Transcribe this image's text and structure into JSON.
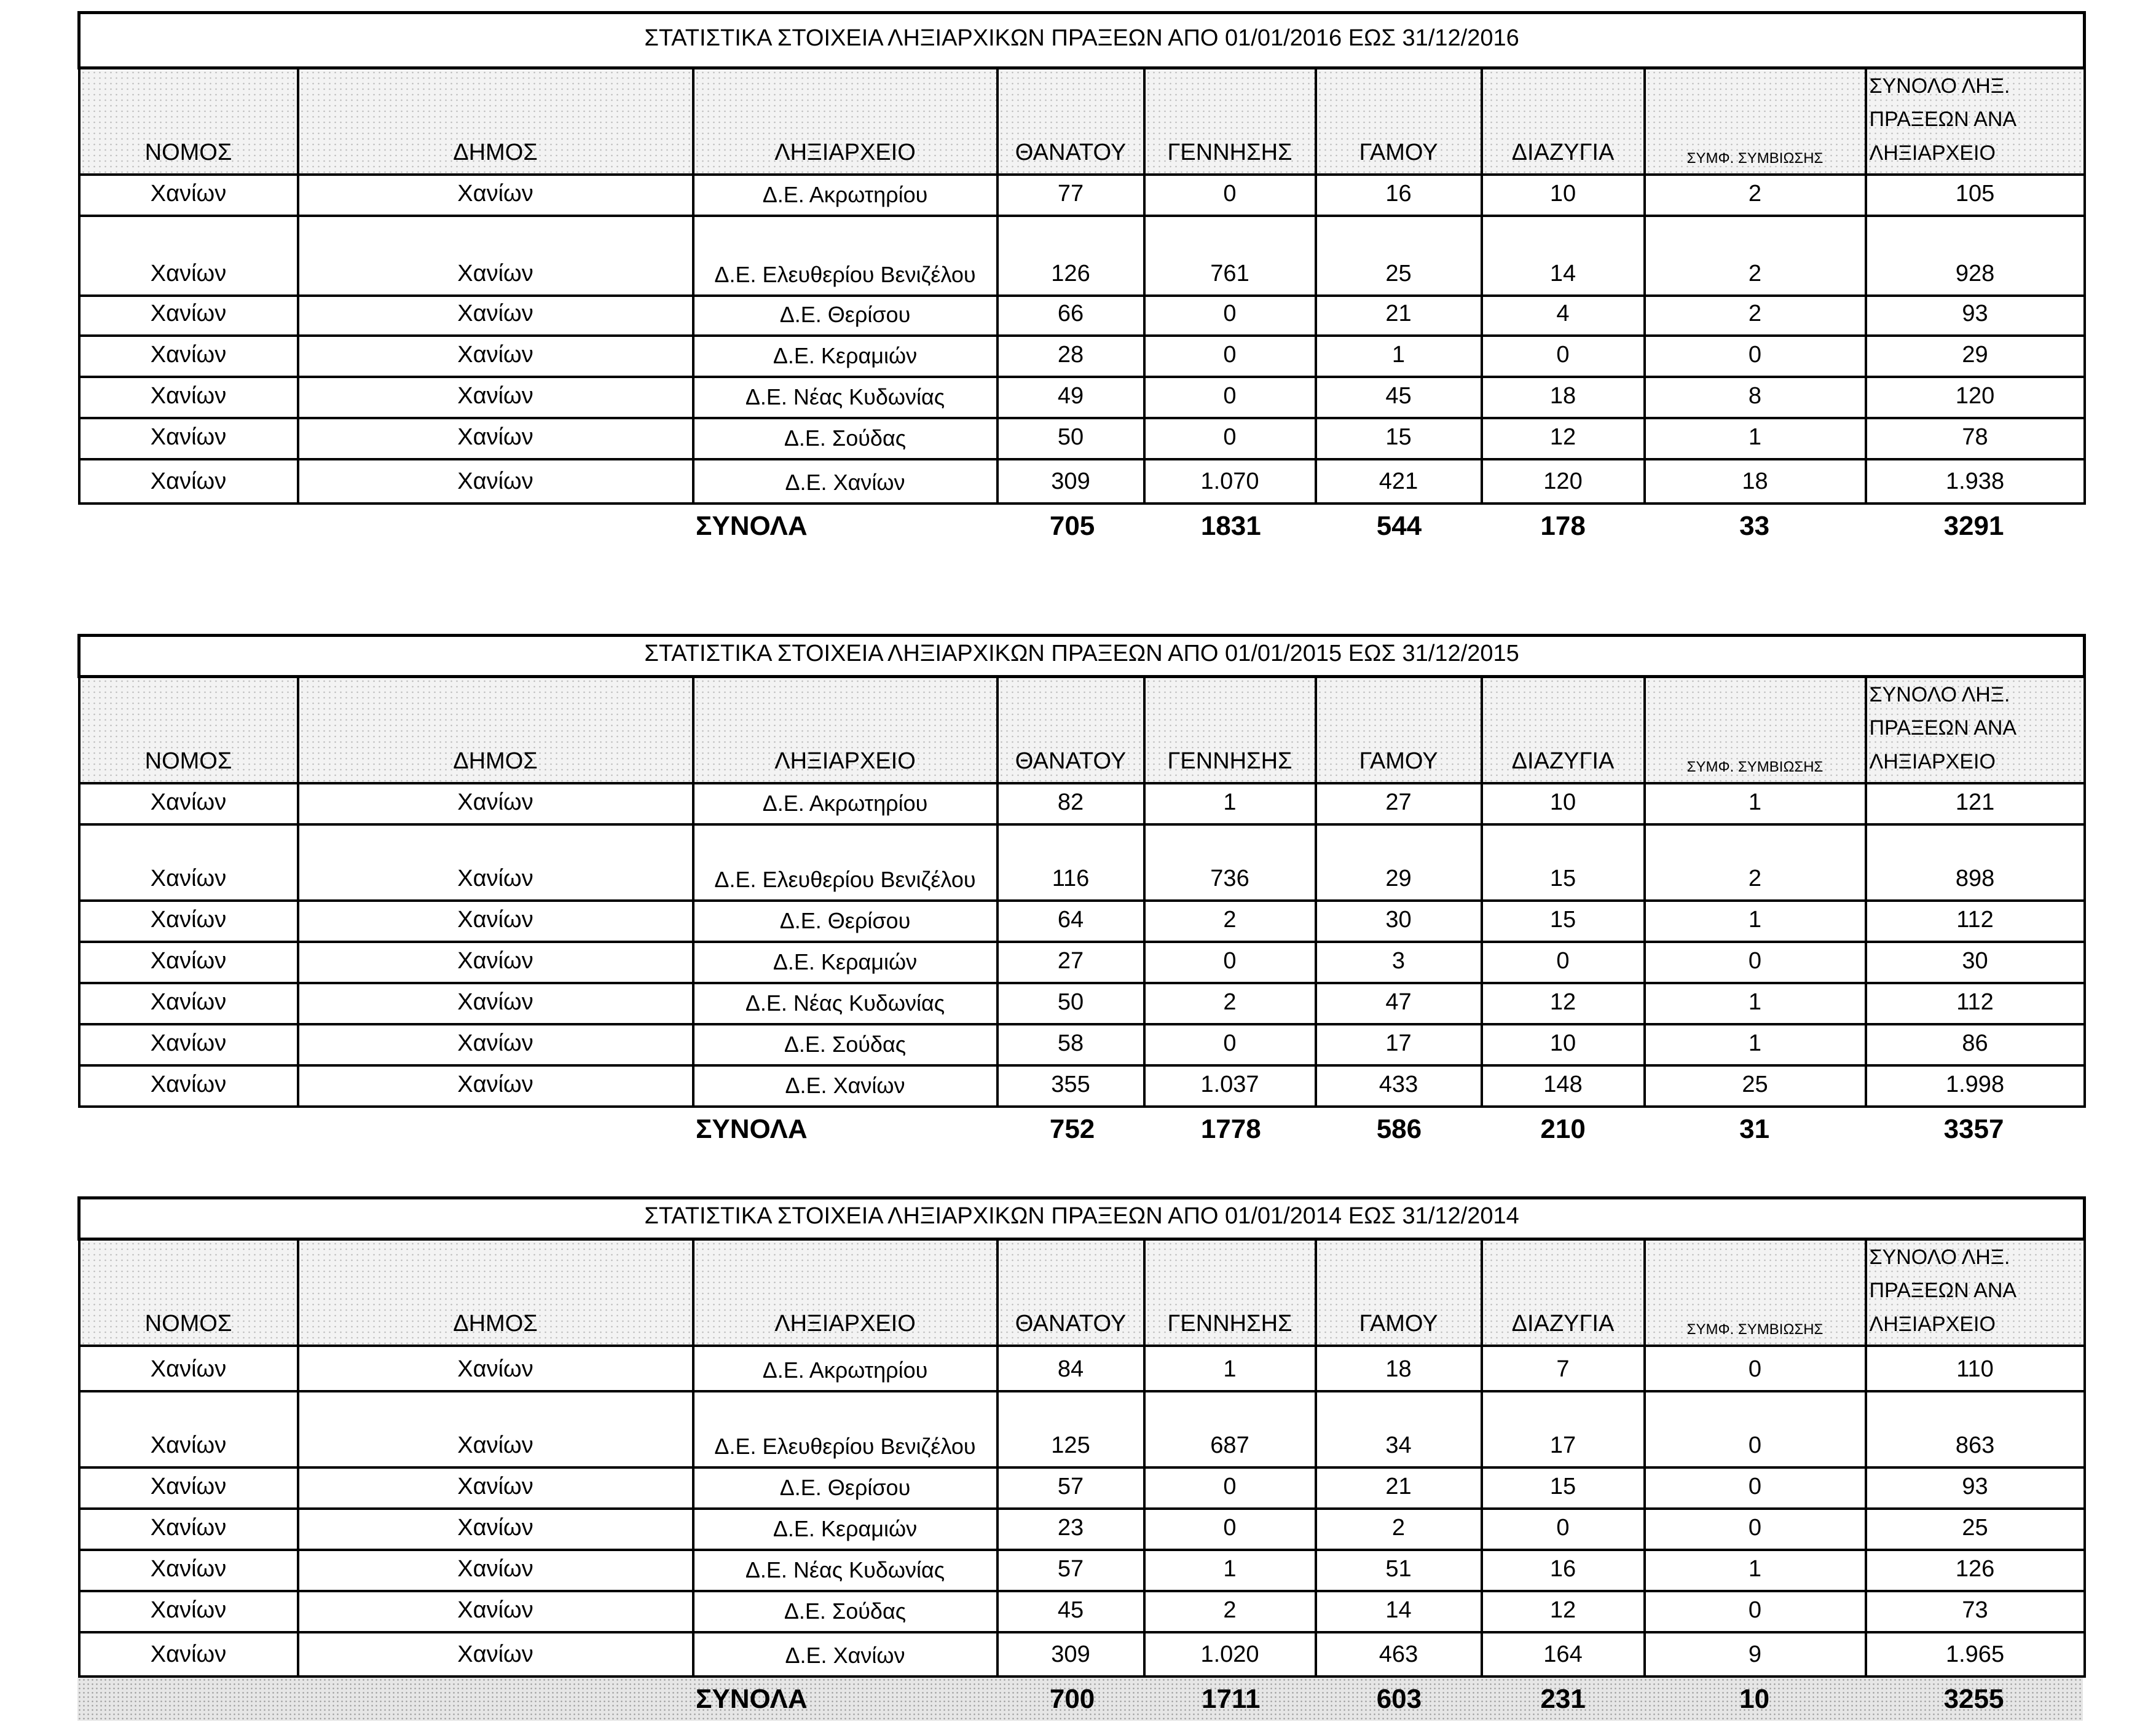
{
  "columns": [
    "ΝΟΜΟΣ",
    "ΔΗΜΟΣ",
    "ΛΗΞΙΑΡΧΕΙΟ",
    "ΘΑΝΑΤΟΥ",
    "ΓΕΝΝΗΣΗΣ",
    "ΓΑΜΟΥ",
    "ΔΙΑΖΥΓΙΑ",
    "ΣΥΜΦ. ΣΥΜΒΙΩΣΗΣ",
    "ΣΥΝΟΛΟ ΛΗΞ. ΠΡΑΞΕΩΝ ΑΝΑ ΛΗΞΙΑΡΧΕΙΟ"
  ],
  "totals_label": "ΣΥΝΟΛΑ",
  "tables": [
    {
      "title": "ΣΤΑΤΙΣΤΙΚΑ  ΣΤΟΙΧΕΙΑ ΛΗΞΙΑΡΧΙΚΩΝ ΠΡΑΞΕΩΝ ΑΠΟ 01/01/2016 ΕΩΣ 31/12/2016",
      "rows": [
        [
          "Χανίων",
          "Χανίων",
          "Δ.Ε. Ακρωτηρίου",
          "77",
          "0",
          "16",
          "10",
          "2",
          "105"
        ],
        [
          "Χανίων",
          "Χανίων",
          "Δ.Ε. Ελευθερίου Βενιζέλου",
          "126",
          "761",
          "25",
          "14",
          "2",
          "928"
        ],
        [
          "Χανίων",
          "Χανίων",
          "Δ.Ε. Θερίσου",
          "66",
          "0",
          "21",
          "4",
          "2",
          "93"
        ],
        [
          "Χανίων",
          "Χανίων",
          "Δ.Ε. Κεραμιών",
          "28",
          "0",
          "1",
          "0",
          "0",
          "29"
        ],
        [
          "Χανίων",
          "Χανίων",
          "Δ.Ε. Νέας Κυδωνίας",
          "49",
          "0",
          "45",
          "18",
          "8",
          "120"
        ],
        [
          "Χανίων",
          "Χανίων",
          "Δ.Ε. Σούδας",
          "50",
          "0",
          "15",
          "12",
          "1",
          "78"
        ],
        [
          "Χανίων",
          "Χανίων",
          "Δ.Ε. Χανίων",
          "309",
          "1.070",
          "421",
          "120",
          "18",
          "1.938"
        ]
      ],
      "totals": [
        "705",
        "1831",
        "544",
        "178",
        "33",
        "3291"
      ]
    },
    {
      "title": "ΣΤΑΤΙΣΤΙΚΑ  ΣΤΟΙΧΕΙΑ ΛΗΞΙΑΡΧΙΚΩΝ ΠΡΑΞΕΩΝ  ΑΠΟ 01/01/2015 ΕΩΣ  31/12/2015",
      "rows": [
        [
          "Χανίων",
          "Χανίων",
          "Δ.Ε. Ακρωτηρίου",
          "82",
          "1",
          "27",
          "10",
          "1",
          "121"
        ],
        [
          "Χανίων",
          "Χανίων",
          "Δ.Ε. Ελευθερίου Βενιζέλου",
          "116",
          "736",
          "29",
          "15",
          "2",
          "898"
        ],
        [
          "Χανίων",
          "Χανίων",
          "Δ.Ε. Θερίσου",
          "64",
          "2",
          "30",
          "15",
          "1",
          "112"
        ],
        [
          "Χανίων",
          "Χανίων",
          "Δ.Ε. Κεραμιών",
          "27",
          "0",
          "3",
          "0",
          "0",
          "30"
        ],
        [
          "Χανίων",
          "Χανίων",
          "Δ.Ε. Νέας Κυδωνίας",
          "50",
          "2",
          "47",
          "12",
          "1",
          "112"
        ],
        [
          "Χανίων",
          "Χανίων",
          "Δ.Ε. Σούδας",
          "58",
          "0",
          "17",
          "10",
          "1",
          "86"
        ],
        [
          "Χανίων",
          "Χανίων",
          "Δ.Ε. Χανίων",
          "355",
          "1.037",
          "433",
          "148",
          "25",
          "1.998"
        ]
      ],
      "totals": [
        "752",
        "1778",
        "586",
        "210",
        "31",
        "3357"
      ]
    },
    {
      "title": "ΣΤΑΤΙΣΤΙΚΑ  ΣΤΟΙΧΕΙΑ ΛΗΞΙΑΡΧΙΚΩΝ ΠΡΑΞΕΩΝ  ΑΠΟ 01/01/2014 ΕΩΣ  31/12/2014",
      "rows": [
        [
          "Χανίων",
          "Χανίων",
          "Δ.Ε. Ακρωτηρίου",
          "84",
          "1",
          "18",
          "7",
          "0",
          "110"
        ],
        [
          "Χανίων",
          "Χανίων",
          "Δ.Ε. Ελευθερίου Βενιζέλου",
          "125",
          "687",
          "34",
          "17",
          "0",
          "863"
        ],
        [
          "Χανίων",
          "Χανίων",
          "Δ.Ε. Θερίσου",
          "57",
          "0",
          "21",
          "15",
          "0",
          "93"
        ],
        [
          "Χανίων",
          "Χανίων",
          "Δ.Ε. Κεραμιών",
          "23",
          "0",
          "2",
          "0",
          "0",
          "25"
        ],
        [
          "Χανίων",
          "Χανίων",
          "Δ.Ε. Νέας Κυδωνίας",
          "57",
          "1",
          "51",
          "16",
          "1",
          "126"
        ],
        [
          "Χανίων",
          "Χανίων",
          "Δ.Ε. Σούδας",
          "45",
          "2",
          "14",
          "12",
          "0",
          "73"
        ],
        [
          "Χανίων",
          "Χανίων",
          "Δ.Ε. Χανίων",
          "309",
          "1.020",
          "463",
          "164",
          "9",
          "1.965"
        ]
      ],
      "totals": [
        "700",
        "1711",
        "603",
        "231",
        "10",
        "3255"
      ]
    }
  ]
}
